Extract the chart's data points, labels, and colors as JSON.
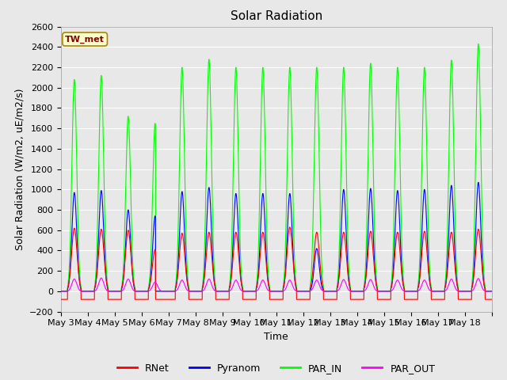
{
  "title": "Solar Radiation",
  "ylabel": "Solar Radiation (W/m2, uE/m2/s)",
  "xlabel": "Time",
  "ylim": [
    -200,
    2600
  ],
  "yticks": [
    -200,
    0,
    200,
    400,
    600,
    800,
    1000,
    1200,
    1400,
    1600,
    1800,
    2000,
    2200,
    2400,
    2600
  ],
  "background_color": "#e8e8e8",
  "annotation_text": "TW_met",
  "annotation_bg": "#ffffcc",
  "annotation_border": "#aa8800",
  "colors": {
    "RNet": "#ff0000",
    "Pyranom": "#0000ff",
    "PAR_IN": "#00ff00",
    "PAR_OUT": "#ff00ff"
  },
  "legend_entries": [
    "RNet",
    "Pyranom",
    "PAR_IN",
    "PAR_OUT"
  ],
  "num_days": 16,
  "x_tick_labels": [
    "May 3",
    "May 4",
    "May 5",
    "May 6",
    "May 7",
    "May 8",
    "May 9",
    "May 10",
    "May 11",
    "May 12",
    "May 13",
    "May 14",
    "May 15",
    "May 16",
    "May 17",
    "May 18"
  ],
  "title_fontsize": 11,
  "label_fontsize": 9,
  "tick_fontsize": 8
}
